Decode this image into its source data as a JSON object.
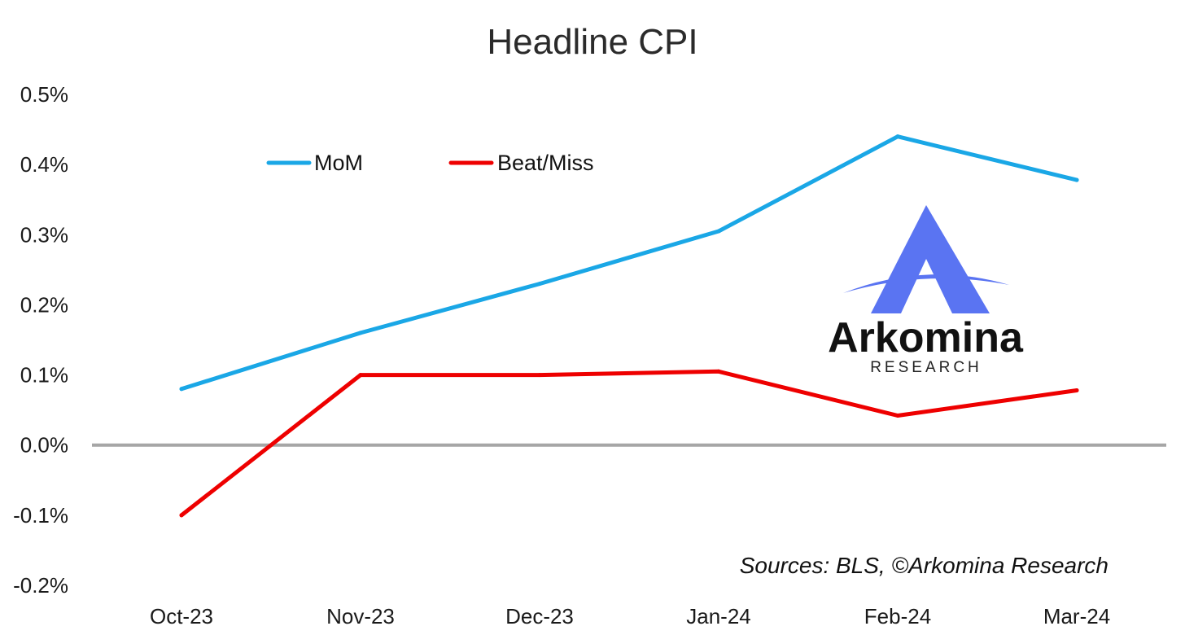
{
  "chart_data": {
    "type": "line",
    "title": "Headline CPI",
    "categories": [
      "Oct-23",
      "Nov-23",
      "Dec-23",
      "Jan-24",
      "Feb-24",
      "Mar-24"
    ],
    "series": [
      {
        "name": "MoM",
        "color": "#1aa7e6",
        "values": [
          0.08,
          0.16,
          0.23,
          0.305,
          0.44,
          0.378
        ]
      },
      {
        "name": "Beat/Miss",
        "color": "#ee0000",
        "values": [
          -0.1,
          0.1,
          0.1,
          0.105,
          0.042,
          0.078
        ]
      }
    ],
    "ylim": [
      -0.2,
      0.5
    ],
    "yticks": [
      "-0.2%",
      "-0.1%",
      "0.0%",
      "0.1%",
      "0.2%",
      "0.3%",
      "0.4%",
      "0.5%"
    ],
    "zero_line_color": "#a6a6a6",
    "grid": false,
    "legend_position": "top-left",
    "source": "Sources: BLS, ©Arkomina Research"
  },
  "logo": {
    "name": "Arkomina",
    "sub": "RESEARCH",
    "accent_color": "#5a74f2"
  }
}
